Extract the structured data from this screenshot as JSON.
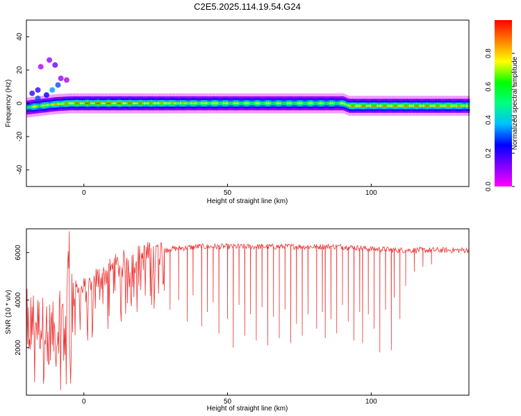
{
  "title": "C2E5.2025.114.19.54.G24",
  "chart_data": [
    {
      "type": "heatmap",
      "xlabel": "Height of straight line (km)",
      "ylabel": "Frequency (Hz)",
      "xlim": [
        -20,
        134
      ],
      "ylim": [
        -50,
        50
      ],
      "xticks": [
        "0",
        "50",
        "100"
      ],
      "xtick_values": [
        0,
        50,
        100
      ],
      "yticks": [
        "40",
        "20",
        "0",
        "-20",
        "-40"
      ],
      "ytick_values": [
        40,
        20,
        0,
        -20,
        -40
      ],
      "colorbar": {
        "label": "Normalized spectral amplitude",
        "range": [
          0,
          1
        ],
        "ticks": [
          "0.0",
          "0.2",
          "0.4",
          "0.6",
          "0.8"
        ],
        "tick_values": [
          0,
          0.2,
          0.4,
          0.6,
          0.8
        ],
        "colormap": [
          "#ff00ff",
          "#8000ff",
          "#0000ff",
          "#00c0ff",
          "#00ff80",
          "#00ff00",
          "#ffff00",
          "#ff8000",
          "#ff0000"
        ]
      },
      "ridge": {
        "x": [
          -20,
          -15,
          -10,
          -5,
          0,
          10,
          20,
          40,
          60,
          80,
          90,
          92,
          100,
          120,
          134
        ],
        "freq_hz": [
          -2.5,
          -1.5,
          -0.5,
          0,
          0,
          0,
          0,
          0,
          0,
          0,
          0,
          -1.5,
          -1.5,
          -1.5,
          -1.5
        ],
        "peak_amplitude": [
          0.7,
          0.8,
          0.85,
          0.9,
          0.95,
          0.95,
          0.9,
          0.8,
          0.75,
          0.75,
          0.75,
          0.9,
          0.9,
          0.9,
          0.85
        ]
      },
      "scatter_points": [
        {
          "x": -18,
          "freq": 6,
          "amp": 0.2
        },
        {
          "x": -16,
          "freq": 3,
          "amp": 0.3
        },
        {
          "x": -13,
          "freq": 5,
          "amp": 0.25
        },
        {
          "x": -11,
          "freq": 8,
          "amp": 0.35
        },
        {
          "x": -9,
          "freq": 11,
          "amp": 0.3
        },
        {
          "x": -16,
          "freq": 8,
          "amp": 0.2
        },
        {
          "x": -10,
          "freq": 23,
          "amp": 0.15
        },
        {
          "x": -12,
          "freq": 26,
          "amp": 0.1
        },
        {
          "x": -15,
          "freq": 22,
          "amp": 0.08
        },
        {
          "x": -8,
          "freq": 15,
          "amp": 0.1
        },
        {
          "x": -6,
          "freq": 14,
          "amp": 0.08
        }
      ]
    },
    {
      "type": "line",
      "xlabel": "Height of straight line (km)",
      "ylabel": "SNR (10 * v/v)",
      "xlim": [
        -20,
        134
      ],
      "ylim": [
        0,
        7000
      ],
      "xticks": [
        "0",
        "50",
        "100"
      ],
      "xtick_values": [
        0,
        50,
        100
      ],
      "yticks": [
        "6000",
        "4000",
        "2000"
      ],
      "ytick_values": [
        6000,
        4000,
        2000
      ],
      "color": "#ee3333",
      "envelope": {
        "x": [
          -20,
          -15,
          -10,
          -6,
          -5,
          -4,
          0,
          5,
          10,
          15,
          20,
          25,
          30,
          40,
          50,
          60,
          70,
          80,
          90,
          100,
          110,
          120,
          134
        ],
        "base": [
          3200,
          3000,
          2600,
          3800,
          6500,
          4200,
          4400,
          4900,
          5300,
          5600,
          5800,
          6000,
          6150,
          6250,
          6250,
          6250,
          6250,
          6250,
          6250,
          6150,
          6100,
          6100,
          6100
        ]
      },
      "dips_km": [
        [
          28,
          4400
        ],
        [
          30,
          3600
        ],
        [
          33,
          4000
        ],
        [
          36,
          3100
        ],
        [
          38,
          4200
        ],
        [
          41,
          2900
        ],
        [
          43,
          3500
        ],
        [
          45,
          3900
        ],
        [
          47,
          2600
        ],
        [
          50,
          3200
        ],
        [
          52,
          2000
        ],
        [
          54,
          3800
        ],
        [
          56,
          2500
        ],
        [
          58,
          3400
        ],
        [
          60,
          2300
        ],
        [
          62,
          3700
        ],
        [
          64,
          2100
        ],
        [
          66,
          3300
        ],
        [
          68,
          2400
        ],
        [
          70,
          3600
        ],
        [
          72,
          2200
        ],
        [
          74,
          3000
        ],
        [
          76,
          2500
        ],
        [
          78,
          3400
        ],
        [
          81,
          2800
        ],
        [
          83,
          3500
        ],
        [
          84,
          2400
        ],
        [
          86,
          3200
        ],
        [
          88,
          2600
        ],
        [
          90,
          3800
        ],
        [
          92,
          3100
        ],
        [
          94,
          2300
        ],
        [
          96,
          3500
        ],
        [
          97,
          2200
        ],
        [
          99,
          3400
        ],
        [
          101,
          2800
        ],
        [
          103,
          1800
        ],
        [
          105,
          3600
        ],
        [
          107,
          1900
        ],
        [
          108,
          4100
        ],
        [
          110,
          3200
        ],
        [
          112,
          4600
        ],
        [
          115,
          5200
        ],
        [
          118,
          5400
        ],
        [
          121,
          5500
        ]
      ]
    }
  ]
}
